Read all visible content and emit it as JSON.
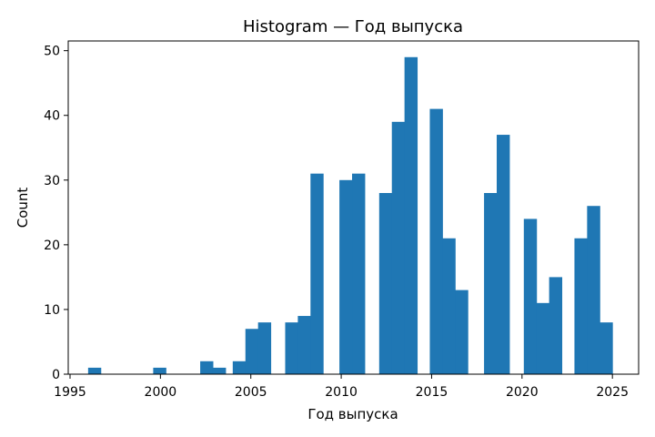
{
  "chart_data": {
    "type": "bar",
    "title": "Histogram — Год выпуска",
    "xlabel": "Год выпуска",
    "ylabel": "Count",
    "xlim": [
      1994.9,
      2026.45
    ],
    "ylim": [
      0,
      51.5
    ],
    "xticks": [
      1995,
      2000,
      2005,
      2010,
      2015,
      2020,
      2025
    ],
    "yticks": [
      0,
      10,
      20,
      30,
      40,
      50
    ],
    "bin_width": 0.725,
    "bins": [
      {
        "x0": 1996.0,
        "count": 1
      },
      {
        "x0": 1999.6,
        "count": 1
      },
      {
        "x0": 2002.2,
        "count": 2
      },
      {
        "x0": 2002.9,
        "count": 1
      },
      {
        "x0": 2004.0,
        "count": 2
      },
      {
        "x0": 2004.7,
        "count": 7
      },
      {
        "x0": 2005.4,
        "count": 8
      },
      {
        "x0": 2006.9,
        "count": 8
      },
      {
        "x0": 2007.6,
        "count": 9
      },
      {
        "x0": 2008.3,
        "count": 31
      },
      {
        "x0": 2009.9,
        "count": 30
      },
      {
        "x0": 2010.6,
        "count": 31
      },
      {
        "x0": 2012.1,
        "count": 28
      },
      {
        "x0": 2012.8,
        "count": 39
      },
      {
        "x0": 2013.5,
        "count": 49
      },
      {
        "x0": 2014.9,
        "count": 41
      },
      {
        "x0": 2015.6,
        "count": 21
      },
      {
        "x0": 2016.3,
        "count": 13
      },
      {
        "x0": 2017.9,
        "count": 28
      },
      {
        "x0": 2018.6,
        "count": 37
      },
      {
        "x0": 2020.1,
        "count": 24
      },
      {
        "x0": 2020.8,
        "count": 11
      },
      {
        "x0": 2021.5,
        "count": 15
      },
      {
        "x0": 2022.9,
        "count": 21
      },
      {
        "x0": 2023.6,
        "count": 26
      },
      {
        "x0": 2024.3,
        "count": 8
      }
    ],
    "bar_color": "#1f77b4",
    "grid": false,
    "legend": "none"
  }
}
